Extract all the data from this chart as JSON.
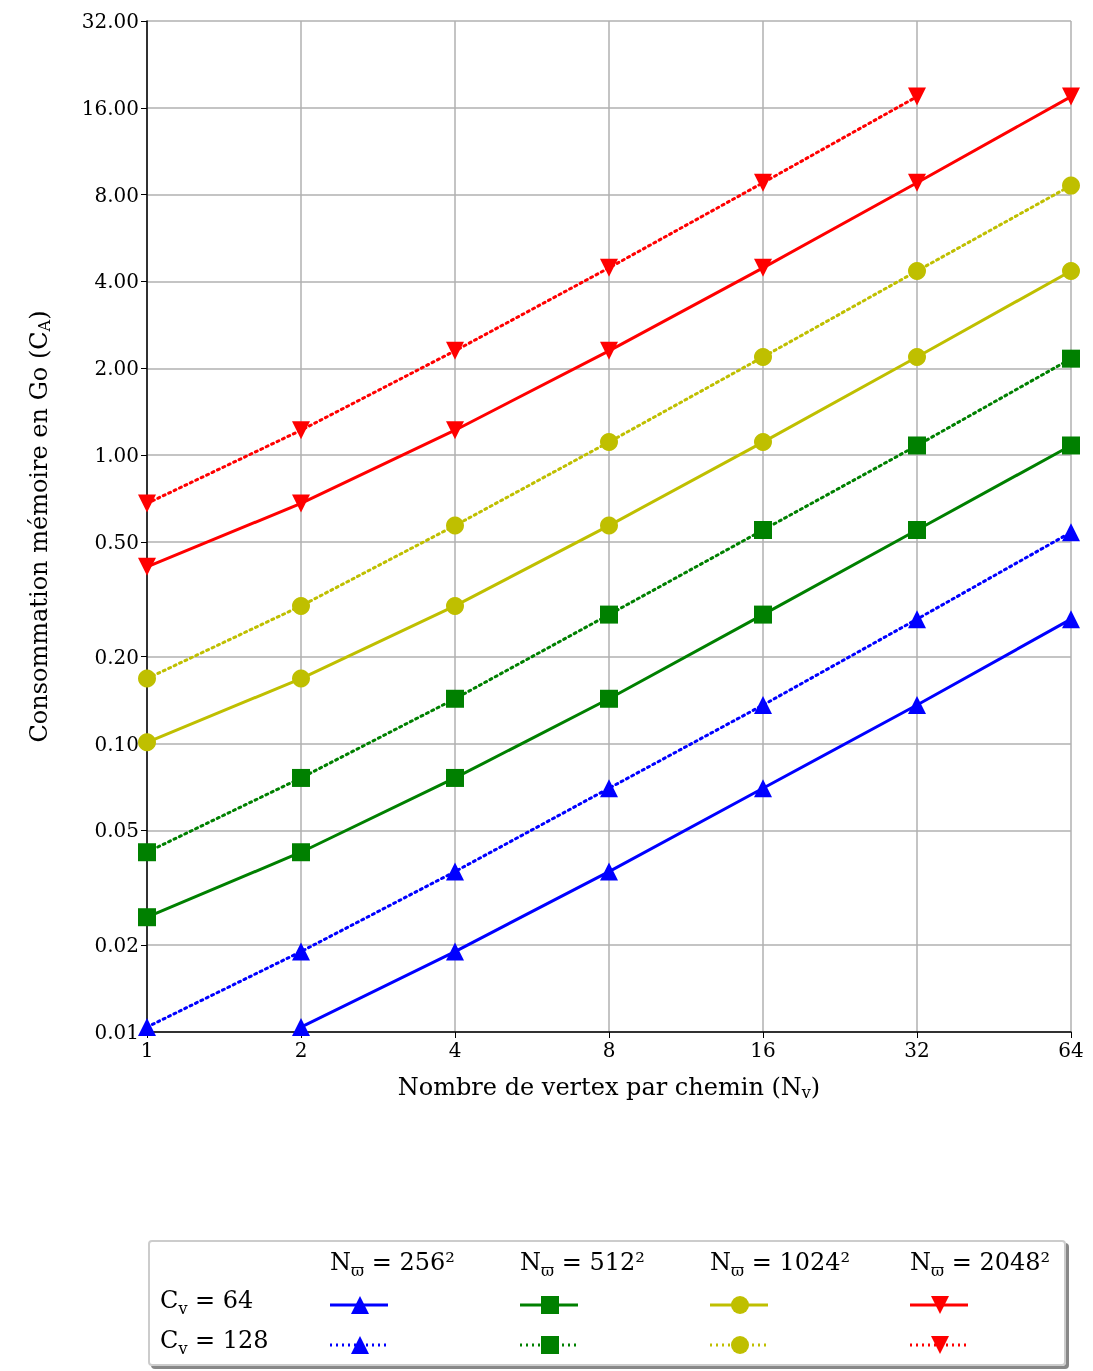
{
  "chart_data": {
    "type": "line",
    "xlabel": "Nombre de vertex par chemin (N$_{v}$)",
    "ylabel": "Consommation mémoire en Go (C$_{A}$)",
    "x": [
      1,
      2,
      4,
      8,
      16,
      32,
      64
    ],
    "series": [
      {
        "color": "#0000ff",
        "marker": "triangle",
        "line_style": "solid",
        "values": [
          null,
          0.0104,
          0.019,
          0.036,
          0.07,
          0.136,
          0.27
        ]
      },
      {
        "color": "#0000ff",
        "marker": "triangle",
        "line_style": "dotted",
        "values": [
          0.0104,
          0.019,
          0.036,
          0.07,
          0.136,
          0.27,
          0.54
        ]
      },
      {
        "color": "#008000",
        "marker": "square",
        "line_style": "solid",
        "values": [
          0.025,
          0.042,
          0.076,
          0.143,
          0.28,
          0.55,
          1.08
        ]
      },
      {
        "color": "#008000",
        "marker": "square",
        "line_style": "dotted",
        "values": [
          0.042,
          0.076,
          0.143,
          0.28,
          0.55,
          1.08,
          2.16
        ]
      },
      {
        "color": "#bfbf00",
        "marker": "circle",
        "line_style": "solid",
        "values": [
          0.101,
          0.168,
          0.3,
          0.57,
          1.11,
          2.19,
          4.35
        ]
      },
      {
        "color": "#bfbf00",
        "marker": "circle",
        "line_style": "dotted",
        "values": [
          0.168,
          0.3,
          0.57,
          1.11,
          2.19,
          4.35,
          8.6
        ]
      },
      {
        "color": "#ff0000",
        "marker": "triangle-down",
        "line_style": "solid",
        "values": [
          0.41,
          0.68,
          1.22,
          2.3,
          4.46,
          8.8,
          17.5
        ]
      },
      {
        "color": "#ff0000",
        "marker": "triangle-down",
        "line_style": "dotted",
        "values": [
          0.68,
          1.22,
          2.3,
          4.46,
          8.8,
          17.5,
          null
        ]
      }
    ],
    "log": "xy",
    "xlim": [
      1,
      64
    ],
    "xticks": [
      1,
      2,
      4,
      8,
      16,
      32,
      64
    ],
    "ylim": [
      0.01,
      32
    ],
    "yticks": [
      {
        "value": 0.01,
        "label": "0.01"
      },
      {
        "value": 0.02,
        "label": "0.02"
      },
      {
        "value": 0.05,
        "label": "0.05"
      },
      {
        "value": 0.1,
        "label": "0.10"
      },
      {
        "value": 0.2,
        "label": "0.20"
      },
      {
        "value": 0.5,
        "label": "0.50"
      },
      {
        "value": 1,
        "label": "1.00"
      },
      {
        "value": 2,
        "label": "2.00"
      },
      {
        "value": 4,
        "label": "4.00"
      },
      {
        "value": 8,
        "label": "8.00"
      },
      {
        "value": 16,
        "label": "16.00"
      },
      {
        "value": 32,
        "label": "32.00"
      }
    ],
    "grid": true,
    "annotations": [
      "N$_{ϖ}$ = 256²",
      "N$_{ϖ}$ = 512²",
      "N$_{ϖ}$ = 1024²",
      "N$_{ϖ}$ = 2048²",
      "C$_{v}$ = 64",
      "C$_{v}$ = 128"
    ]
  }
}
